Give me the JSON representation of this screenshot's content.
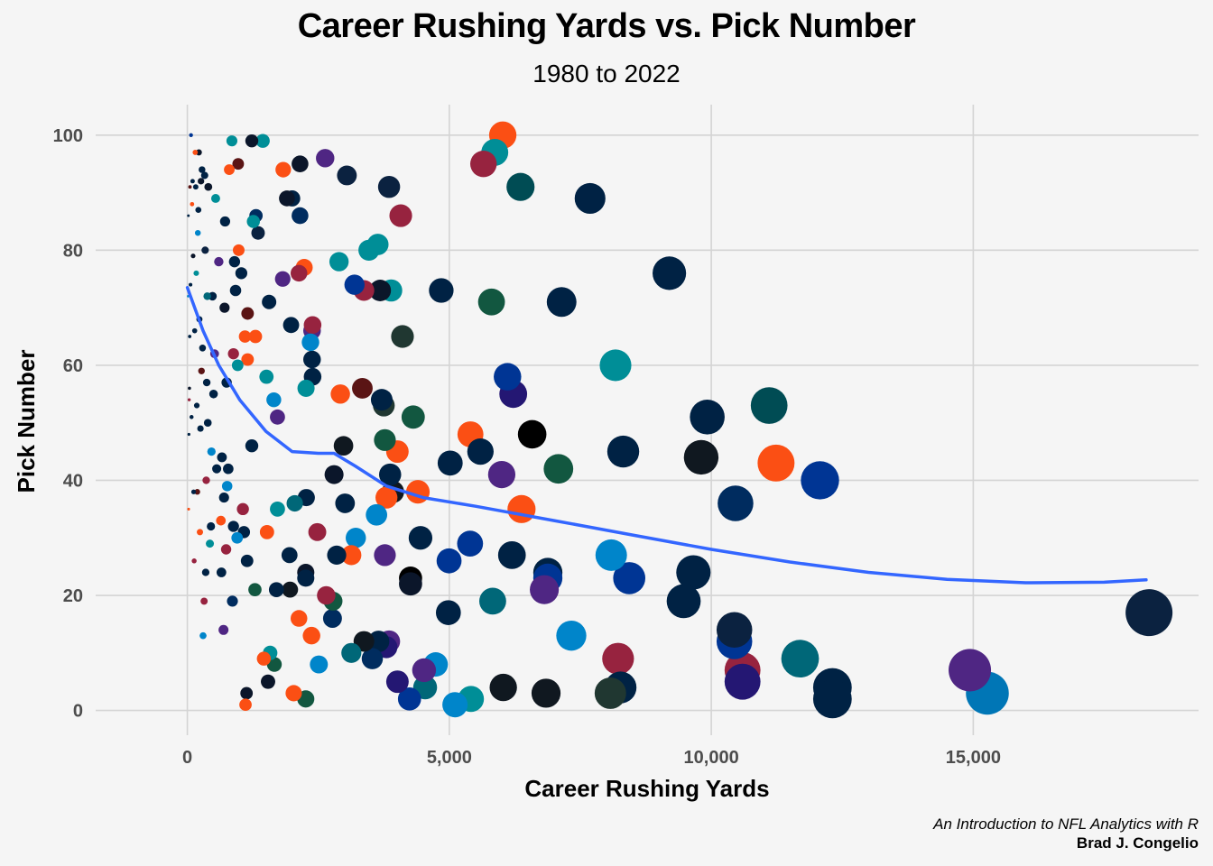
{
  "chart_data": {
    "type": "scatter",
    "title": "Career Rushing Yards vs. Pick Number",
    "subtitle": "1980 to 2022",
    "xlabel": "Career Rushing Yards",
    "ylabel": "Pick Number",
    "xlim": [
      -1750,
      19300
    ],
    "ylim": [
      -4.3,
      105.3
    ],
    "x_ticks": [
      0,
      5000,
      10000,
      15000
    ],
    "x_tick_labels": [
      "0",
      "5,000",
      "10,000",
      "15,000"
    ],
    "y_ticks": [
      0,
      20,
      40,
      60,
      80,
      100
    ],
    "y_tick_labels": [
      "0",
      "20",
      "40",
      "60",
      "80",
      "100"
    ],
    "grid": true,
    "legend": "none",
    "point_size_encodes": "Career Rushing Yards",
    "caption": [
      "An Introduction to NFL Analytics with R",
      "Brad J. Congelio"
    ],
    "trend": {
      "name": "smooth",
      "color": "#3366ff",
      "x": [
        0,
        300,
        600,
        1000,
        1500,
        2000,
        2500,
        2800,
        3200,
        3800,
        4500,
        5500,
        7000,
        8500,
        10000,
        11500,
        13000,
        14500,
        16000,
        17500,
        18300
      ],
      "y": [
        73.5,
        66,
        60,
        54,
        48.5,
        45,
        44.7,
        44.7,
        42.5,
        39,
        37,
        35.5,
        33,
        30.5,
        28,
        25.8,
        24,
        22.8,
        22.2,
        22.3,
        22.7
      ]
    },
    "points": [
      {
        "x": 18355,
        "y": 17,
        "c": "#0b2240"
      },
      {
        "x": 15269,
        "y": 3,
        "c": "#0076b6"
      },
      {
        "x": 14934,
        "y": 7,
        "c": "#4f2683"
      },
      {
        "x": 12312,
        "y": 4,
        "c": "#002244"
      },
      {
        "x": 12312,
        "y": 2,
        "c": "#002244"
      },
      {
        "x": 11695,
        "y": 9,
        "c": "#006778"
      },
      {
        "x": 12074,
        "y": 40,
        "c": "#003594"
      },
      {
        "x": 11236,
        "y": 43,
        "c": "#fb4f14"
      },
      {
        "x": 11104,
        "y": 53,
        "c": "#004c54"
      },
      {
        "x": 10596,
        "y": 7,
        "c": "#97233f"
      },
      {
        "x": 10596,
        "y": 5,
        "c": "#241773"
      },
      {
        "x": 10441,
        "y": 12,
        "c": "#003594"
      },
      {
        "x": 10441,
        "y": 14,
        "c": "#0b2240"
      },
      {
        "x": 9923,
        "y": 51,
        "c": "#002244"
      },
      {
        "x": 9807,
        "y": 44,
        "c": "#101820"
      },
      {
        "x": 9659,
        "y": 24,
        "c": "#002244"
      },
      {
        "x": 9473,
        "y": 19,
        "c": "#002244"
      },
      {
        "x": 10462,
        "y": 36,
        "c": "#002c5f"
      },
      {
        "x": 9199,
        "y": 76,
        "c": "#002244"
      },
      {
        "x": 8434,
        "y": 23,
        "c": "#003594"
      },
      {
        "x": 8319,
        "y": 45,
        "c": "#002244"
      },
      {
        "x": 8172,
        "y": 60,
        "c": "#008e97"
      },
      {
        "x": 8090,
        "y": 27,
        "c": "#0085ca"
      },
      {
        "x": 8221,
        "y": 9,
        "c": "#97233f"
      },
      {
        "x": 8268,
        "y": 4,
        "c": "#002244"
      },
      {
        "x": 8074,
        "y": 3,
        "c": "#203731"
      },
      {
        "x": 7686,
        "y": 89,
        "c": "#002244"
      },
      {
        "x": 7328,
        "y": 13,
        "c": "#0085ca"
      },
      {
        "x": 7143,
        "y": 71,
        "c": "#002244"
      },
      {
        "x": 7083,
        "y": 42,
        "c": "#125740"
      },
      {
        "x": 6880,
        "y": 24,
        "c": "#002244"
      },
      {
        "x": 6880,
        "y": 23,
        "c": "#003594"
      },
      {
        "x": 6813,
        "y": 21,
        "c": "#4f2683"
      },
      {
        "x": 6846,
        "y": 3,
        "c": "#101820"
      },
      {
        "x": 6581,
        "y": 48,
        "c": "#000000"
      },
      {
        "x": 6378,
        "y": 35,
        "c": "#fb4f14"
      },
      {
        "x": 6195,
        "y": 27,
        "c": "#002244"
      },
      {
        "x": 6220,
        "y": 55,
        "c": "#241773"
      },
      {
        "x": 6110,
        "y": 58,
        "c": "#003594"
      },
      {
        "x": 6020,
        "y": 100,
        "c": "#fb4f14"
      },
      {
        "x": 6030,
        "y": 4,
        "c": "#101820"
      },
      {
        "x": 6000,
        "y": 41,
        "c": "#4f2683"
      },
      {
        "x": 6359,
        "y": 91,
        "c": "#004c54"
      },
      {
        "x": 5867,
        "y": 97,
        "c": "#008e97"
      },
      {
        "x": 5652,
        "y": 95,
        "c": "#97233f"
      },
      {
        "x": 5805,
        "y": 71,
        "c": "#125740"
      },
      {
        "x": 5828,
        "y": 19,
        "c": "#006778"
      },
      {
        "x": 5403,
        "y": 48,
        "c": "#fb4f14"
      },
      {
        "x": 5594,
        "y": 45,
        "c": "#002244"
      },
      {
        "x": 5396,
        "y": 29,
        "c": "#003594"
      },
      {
        "x": 5413,
        "y": 2,
        "c": "#008e97"
      },
      {
        "x": 5108,
        "y": 1,
        "c": "#0085ca"
      },
      {
        "x": 4846,
        "y": 73,
        "c": "#002244"
      },
      {
        "x": 5016,
        "y": 43,
        "c": "#002244"
      },
      {
        "x": 4995,
        "y": 26,
        "c": "#003594"
      },
      {
        "x": 4982,
        "y": 17,
        "c": "#002244"
      },
      {
        "x": 4740,
        "y": 8,
        "c": "#0085ca"
      },
      {
        "x": 4538,
        "y": 4,
        "c": "#006778"
      },
      {
        "x": 4518,
        "y": 7,
        "c": "#4f2683"
      },
      {
        "x": 4450,
        "y": 30,
        "c": "#002244"
      },
      {
        "x": 4400,
        "y": 38,
        "c": "#fb4f14"
      },
      {
        "x": 4260,
        "y": 23,
        "c": "#000000"
      },
      {
        "x": 4260,
        "y": 22,
        "c": "#0b162a"
      },
      {
        "x": 4310,
        "y": 51,
        "c": "#125740"
      },
      {
        "x": 4240,
        "y": 2,
        "c": "#003594"
      },
      {
        "x": 4106,
        "y": 65,
        "c": "#203731"
      },
      {
        "x": 4073,
        "y": 86,
        "c": "#97233f"
      },
      {
        "x": 4009,
        "y": 45,
        "c": "#fb4f14"
      },
      {
        "x": 4010,
        "y": 5,
        "c": "#241773"
      },
      {
        "x": 3924,
        "y": 38,
        "c": "#101820"
      },
      {
        "x": 3890,
        "y": 73,
        "c": "#008e97"
      },
      {
        "x": 3850,
        "y": 91,
        "c": "#0b2240"
      },
      {
        "x": 3870,
        "y": 41,
        "c": "#002244"
      },
      {
        "x": 3800,
        "y": 37,
        "c": "#fb4f14"
      },
      {
        "x": 3850,
        "y": 12,
        "c": "#4f2683"
      },
      {
        "x": 3800,
        "y": 11,
        "c": "#241773"
      },
      {
        "x": 3770,
        "y": 47,
        "c": "#125740"
      },
      {
        "x": 3770,
        "y": 27,
        "c": "#4f2683"
      },
      {
        "x": 3750,
        "y": 53,
        "c": "#203731"
      },
      {
        "x": 3710,
        "y": 54,
        "c": "#002244"
      },
      {
        "x": 3680,
        "y": 73,
        "c": "#0b162a"
      },
      {
        "x": 3635,
        "y": 81,
        "c": "#008e97"
      },
      {
        "x": 3650,
        "y": 12,
        "c": "#002244"
      },
      {
        "x": 3610,
        "y": 34,
        "c": "#0085ca"
      },
      {
        "x": 3530,
        "y": 9,
        "c": "#002c5f"
      },
      {
        "x": 3465,
        "y": 80,
        "c": "#008e97"
      },
      {
        "x": 3370,
        "y": 12,
        "c": "#101820"
      },
      {
        "x": 3370,
        "y": 73,
        "c": "#97233f"
      },
      {
        "x": 3340,
        "y": 56,
        "c": "#5a1414"
      },
      {
        "x": 3190,
        "y": 74,
        "c": "#003594"
      },
      {
        "x": 3215,
        "y": 30,
        "c": "#0085ca"
      },
      {
        "x": 3130,
        "y": 27,
        "c": "#fb4f14"
      },
      {
        "x": 3130,
        "y": 10,
        "c": "#006778"
      },
      {
        "x": 3045,
        "y": 93,
        "c": "#0b2240"
      },
      {
        "x": 3010,
        "y": 36,
        "c": "#002244"
      },
      {
        "x": 2980,
        "y": 46,
        "c": "#101820"
      },
      {
        "x": 2920,
        "y": 55,
        "c": "#fb4f14"
      },
      {
        "x": 2895,
        "y": 78,
        "c": "#008e97"
      },
      {
        "x": 2850,
        "y": 27,
        "c": "#002244"
      },
      {
        "x": 2800,
        "y": 41,
        "c": "#0b162a"
      },
      {
        "x": 2770,
        "y": 16,
        "c": "#002c5f"
      },
      {
        "x": 2780,
        "y": 19,
        "c": "#125740"
      },
      {
        "x": 2630,
        "y": 96,
        "c": "#4f2683"
      },
      {
        "x": 2650,
        "y": 20,
        "c": "#97233f"
      },
      {
        "x": 2510,
        "y": 8,
        "c": "#0085ca"
      },
      {
        "x": 2480,
        "y": 31,
        "c": "#97233f"
      },
      {
        "x": 2390,
        "y": 58,
        "c": "#002244"
      },
      {
        "x": 2380,
        "y": 66,
        "c": "#4f2683"
      },
      {
        "x": 2390,
        "y": 67,
        "c": "#97233f"
      },
      {
        "x": 2380,
        "y": 61,
        "c": "#002244"
      },
      {
        "x": 2370,
        "y": 13,
        "c": "#fb4f14"
      },
      {
        "x": 2350,
        "y": 64,
        "c": "#0085ca"
      },
      {
        "x": 2265,
        "y": 56,
        "c": "#008e97"
      },
      {
        "x": 2270,
        "y": 37,
        "c": "#002244"
      },
      {
        "x": 2260,
        "y": 24,
        "c": "#0b162a"
      },
      {
        "x": 2260,
        "y": 23,
        "c": "#002244"
      },
      {
        "x": 2260,
        "y": 2,
        "c": "#125740"
      },
      {
        "x": 2230,
        "y": 77,
        "c": "#fb4f14"
      },
      {
        "x": 2150,
        "y": 95,
        "c": "#0b162a"
      },
      {
        "x": 2150,
        "y": 86,
        "c": "#002c5f"
      },
      {
        "x": 2130,
        "y": 76,
        "c": "#97233f"
      },
      {
        "x": 2130,
        "y": 16,
        "c": "#fb4f14"
      },
      {
        "x": 2050,
        "y": 36,
        "c": "#006778"
      },
      {
        "x": 2030,
        "y": 3,
        "c": "#fb4f14"
      },
      {
        "x": 2000,
        "y": 89,
        "c": "#002244"
      },
      {
        "x": 1980,
        "y": 67,
        "c": "#002244"
      },
      {
        "x": 1960,
        "y": 21,
        "c": "#101820"
      },
      {
        "x": 1950,
        "y": 27,
        "c": "#002244"
      },
      {
        "x": 1900,
        "y": 89,
        "c": "#0b162a"
      },
      {
        "x": 1830,
        "y": 94,
        "c": "#fb4f14"
      },
      {
        "x": 1820,
        "y": 75,
        "c": "#4f2683"
      },
      {
        "x": 1720,
        "y": 51,
        "c": "#4f2683"
      },
      {
        "x": 1720,
        "y": 35,
        "c": "#008e97"
      },
      {
        "x": 1700,
        "y": 21,
        "c": "#002244"
      },
      {
        "x": 1660,
        "y": 8,
        "c": "#125740"
      },
      {
        "x": 1650,
        "y": 54,
        "c": "#0085ca"
      },
      {
        "x": 1580,
        "y": 10,
        "c": "#008e97"
      },
      {
        "x": 1560,
        "y": 71,
        "c": "#002244"
      },
      {
        "x": 1520,
        "y": 31,
        "c": "#fb4f14"
      },
      {
        "x": 1540,
        "y": 5,
        "c": "#0b162a"
      },
      {
        "x": 1510,
        "y": 58,
        "c": "#008e97"
      },
      {
        "x": 1460,
        "y": 9,
        "c": "#fb4f14"
      },
      {
        "x": 1440,
        "y": 99,
        "c": "#008e97"
      },
      {
        "x": 1350,
        "y": 83,
        "c": "#0b2240"
      },
      {
        "x": 1310,
        "y": 86,
        "c": "#002c5f"
      },
      {
        "x": 1300,
        "y": 65,
        "c": "#fb4f14"
      },
      {
        "x": 1290,
        "y": 21,
        "c": "#125740"
      },
      {
        "x": 1260,
        "y": 85,
        "c": "#008e97"
      },
      {
        "x": 1230,
        "y": 99,
        "c": "#0b162a"
      },
      {
        "x": 1230,
        "y": 46,
        "c": "#002244"
      },
      {
        "x": 1150,
        "y": 69,
        "c": "#5a1414"
      },
      {
        "x": 1150,
        "y": 61,
        "c": "#fb4f14"
      },
      {
        "x": 1140,
        "y": 26,
        "c": "#002244"
      },
      {
        "x": 1130,
        "y": 3,
        "c": "#0b162a"
      },
      {
        "x": 1110,
        "y": 1,
        "c": "#fb4f14"
      },
      {
        "x": 1100,
        "y": 65,
        "c": "#fb4f14"
      },
      {
        "x": 1080,
        "y": 31,
        "c": "#002244"
      },
      {
        "x": 1060,
        "y": 35,
        "c": "#97233f"
      },
      {
        "x": 1030,
        "y": 76,
        "c": "#002244"
      },
      {
        "x": 980,
        "y": 80,
        "c": "#fb4f14"
      },
      {
        "x": 970,
        "y": 95,
        "c": "#5a1414"
      },
      {
        "x": 960,
        "y": 60,
        "c": "#008e97"
      },
      {
        "x": 950,
        "y": 30,
        "c": "#0085ca"
      },
      {
        "x": 920,
        "y": 73,
        "c": "#002244"
      },
      {
        "x": 900,
        "y": 78,
        "c": "#002244"
      },
      {
        "x": 880,
        "y": 62,
        "c": "#97233f"
      },
      {
        "x": 880,
        "y": 32,
        "c": "#002244"
      },
      {
        "x": 860,
        "y": 19,
        "c": "#002c5f"
      },
      {
        "x": 850,
        "y": 99,
        "c": "#008e97"
      },
      {
        "x": 800,
        "y": 94,
        "c": "#fb4f14"
      },
      {
        "x": 780,
        "y": 42,
        "c": "#002244"
      },
      {
        "x": 760,
        "y": 39,
        "c": "#0085ca"
      },
      {
        "x": 750,
        "y": 57,
        "c": "#002244"
      },
      {
        "x": 740,
        "y": 28,
        "c": "#97233f"
      },
      {
        "x": 720,
        "y": 85,
        "c": "#002244"
      },
      {
        "x": 710,
        "y": 70,
        "c": "#0b162a"
      },
      {
        "x": 700,
        "y": 37,
        "c": "#002244"
      },
      {
        "x": 690,
        "y": 14,
        "c": "#4f2683"
      },
      {
        "x": 660,
        "y": 44,
        "c": "#002244"
      },
      {
        "x": 650,
        "y": 24,
        "c": "#002244"
      },
      {
        "x": 640,
        "y": 33,
        "c": "#fb4f14"
      },
      {
        "x": 600,
        "y": 78,
        "c": "#4f2683"
      },
      {
        "x": 560,
        "y": 42,
        "c": "#002244"
      },
      {
        "x": 540,
        "y": 89,
        "c": "#008e97"
      },
      {
        "x": 520,
        "y": 62,
        "c": "#4f2683"
      },
      {
        "x": 500,
        "y": 55,
        "c": "#002244"
      },
      {
        "x": 480,
        "y": 72,
        "c": "#002244"
      },
      {
        "x": 460,
        "y": 45,
        "c": "#0085ca"
      },
      {
        "x": 450,
        "y": 32,
        "c": "#002244"
      },
      {
        "x": 430,
        "y": 29,
        "c": "#008e97"
      },
      {
        "x": 400,
        "y": 91,
        "c": "#0b162a"
      },
      {
        "x": 390,
        "y": 50,
        "c": "#002244"
      },
      {
        "x": 380,
        "y": 72,
        "c": "#006778"
      },
      {
        "x": 370,
        "y": 57,
        "c": "#002244"
      },
      {
        "x": 360,
        "y": 40,
        "c": "#97233f"
      },
      {
        "x": 350,
        "y": 24,
        "c": "#002244"
      },
      {
        "x": 340,
        "y": 80,
        "c": "#0b2240"
      },
      {
        "x": 330,
        "y": 93,
        "c": "#002244"
      },
      {
        "x": 320,
        "y": 19,
        "c": "#97233f"
      },
      {
        "x": 300,
        "y": 13,
        "c": "#0085ca"
      },
      {
        "x": 290,
        "y": 63,
        "c": "#002244"
      },
      {
        "x": 280,
        "y": 94,
        "c": "#002244"
      },
      {
        "x": 270,
        "y": 59,
        "c": "#5a1414"
      },
      {
        "x": 260,
        "y": 92,
        "c": "#0b162a"
      },
      {
        "x": 250,
        "y": 49,
        "c": "#002244"
      },
      {
        "x": 240,
        "y": 31,
        "c": "#fb4f14"
      },
      {
        "x": 230,
        "y": 68,
        "c": "#002244"
      },
      {
        "x": 220,
        "y": 97,
        "c": "#0b162a"
      },
      {
        "x": 210,
        "y": 87,
        "c": "#002244"
      },
      {
        "x": 200,
        "y": 83,
        "c": "#0085ca"
      },
      {
        "x": 190,
        "y": 38,
        "c": "#5a1414"
      },
      {
        "x": 180,
        "y": 53,
        "c": "#002244"
      },
      {
        "x": 170,
        "y": 76,
        "c": "#008e97"
      },
      {
        "x": 160,
        "y": 91,
        "c": "#002244"
      },
      {
        "x": 150,
        "y": 97,
        "c": "#fb4f14"
      },
      {
        "x": 140,
        "y": 66,
        "c": "#002244"
      },
      {
        "x": 130,
        "y": 26,
        "c": "#97233f"
      },
      {
        "x": 120,
        "y": 38,
        "c": "#002244"
      },
      {
        "x": 110,
        "y": 79,
        "c": "#0b162a"
      },
      {
        "x": 100,
        "y": 92,
        "c": "#002244"
      },
      {
        "x": 90,
        "y": 88,
        "c": "#fb4f14"
      },
      {
        "x": 80,
        "y": 51,
        "c": "#002244"
      },
      {
        "x": 70,
        "y": 100,
        "c": "#003594"
      },
      {
        "x": 60,
        "y": 74,
        "c": "#002244"
      },
      {
        "x": 50,
        "y": 91,
        "c": "#5a1414"
      },
      {
        "x": 45,
        "y": 65,
        "c": "#002244"
      },
      {
        "x": 40,
        "y": 56,
        "c": "#0b162a"
      },
      {
        "x": 35,
        "y": 54,
        "c": "#97233f"
      },
      {
        "x": 30,
        "y": 48,
        "c": "#002244"
      },
      {
        "x": 25,
        "y": 35,
        "c": "#fb4f14"
      },
      {
        "x": 20,
        "y": 86,
        "c": "#002244"
      },
      {
        "x": 15,
        "y": 72,
        "c": "#0085ca"
      }
    ]
  }
}
